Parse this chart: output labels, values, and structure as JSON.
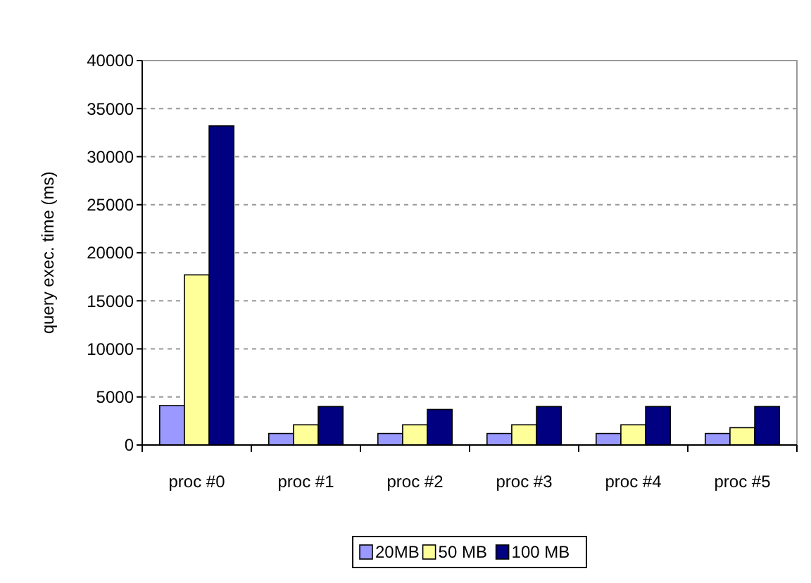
{
  "chart_data": {
    "type": "bar",
    "ylabel": "query exec. time (ms)",
    "categories": [
      "proc #0",
      "proc #1",
      "proc #2",
      "proc #3",
      "proc #4",
      "proc #5"
    ],
    "series": [
      {
        "name": "20MB",
        "color": "#9999ff",
        "values": [
          4100,
          1200,
          1200,
          1200,
          1200,
          1200
        ]
      },
      {
        "name": "50 MB",
        "color": "#ffff99",
        "values": [
          17700,
          2100,
          2100,
          2100,
          2100,
          1800
        ]
      },
      {
        "name": "100 MB",
        "color": "#000080",
        "values": [
          33200,
          4000,
          3700,
          4000,
          4000,
          4000
        ]
      }
    ],
    "ylim": [
      0,
      40000
    ],
    "yticks": [
      0,
      5000,
      10000,
      15000,
      20000,
      25000,
      30000,
      35000,
      40000
    ],
    "grid": "y",
    "legend": "bottom"
  }
}
